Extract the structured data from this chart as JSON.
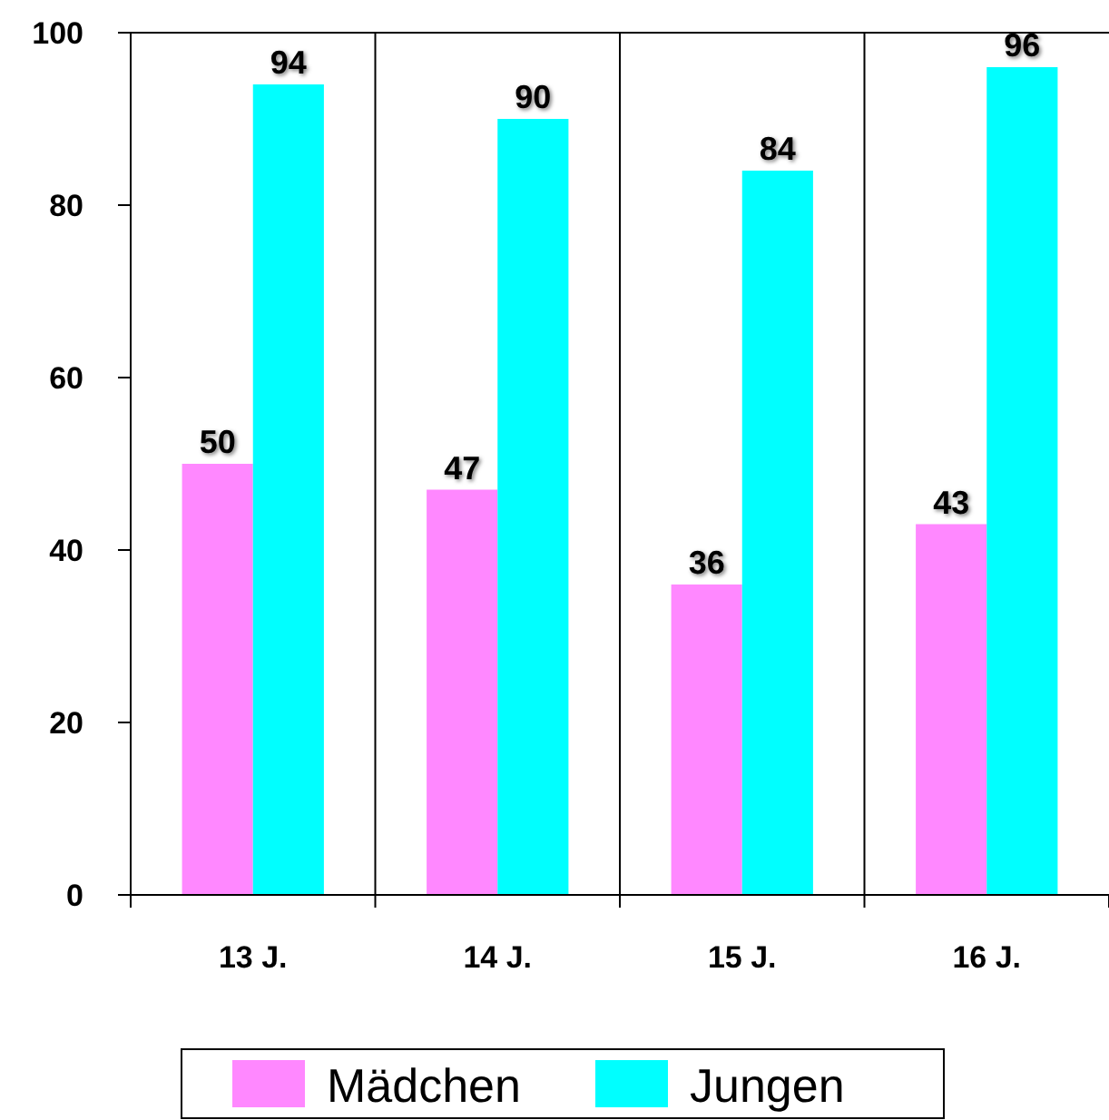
{
  "chart_data": {
    "type": "bar",
    "categories": [
      "13 J.",
      "14 J.",
      "15 J.",
      "16 J."
    ],
    "series": [
      {
        "name": "Mädchen",
        "color": "#ff88ff",
        "values": [
          50,
          47,
          36,
          43
        ]
      },
      {
        "name": "Jungen",
        "color": "#00ffff",
        "values": [
          94,
          90,
          84,
          96
        ]
      }
    ],
    "ylim": [
      0,
      100
    ],
    "yticks": [
      0,
      20,
      40,
      60,
      80,
      100
    ],
    "grid": "x",
    "legend": "bottom",
    "data_labels": true
  }
}
